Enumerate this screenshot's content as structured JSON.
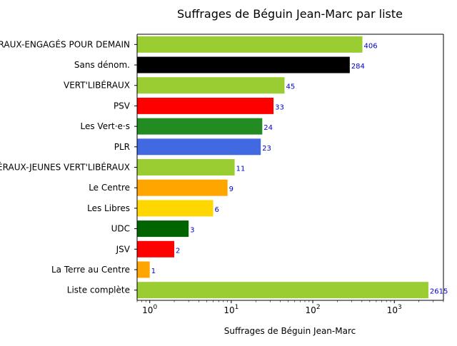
{
  "chart_data": {
    "type": "bar",
    "orientation": "horizontal",
    "title": "Suffrages de Béguin Jean-Marc par liste",
    "xlabel": "Suffrages de Béguin Jean-Marc",
    "ylabel": "",
    "xscale": "log",
    "xlim": [
      0.7,
      4000
    ],
    "x_ticks": [
      1,
      10,
      100,
      1000
    ],
    "x_tick_labels": [
      {
        "base": "10",
        "exp": "0"
      },
      {
        "base": "10",
        "exp": "1"
      },
      {
        "base": "10",
        "exp": "2"
      },
      {
        "base": "10",
        "exp": "3"
      }
    ],
    "grid": false,
    "legend": "none",
    "categories": [
      "VERT'LIBÉRAUX-ENGAGÉS POUR DEMAIN",
      "Sans dénom.",
      "VERT'LIBÉRAUX",
      "PSV",
      "Les Vert·e·s",
      "PLR",
      "VERT'LIBÉRAUX-JEUNES VERT'LIBÉRAUX",
      "Le Centre",
      "Les Libres",
      "UDC",
      "JSV",
      "La Terre au Centre",
      "Liste complète"
    ],
    "values": [
      406,
      284,
      45,
      33,
      24,
      23,
      11,
      9,
      6,
      3,
      2,
      1,
      2615
    ],
    "data_labels": [
      "406",
      "284",
      "45",
      "33",
      "24",
      "23",
      "11",
      "9",
      "6",
      "3",
      "2",
      "1",
      "2615"
    ],
    "colors": [
      "#9acd32",
      "#000000",
      "#9acd32",
      "#ff0000",
      "#228b22",
      "#4169e1",
      "#9acd32",
      "#ffa500",
      "#ffd700",
      "#006400",
      "#ff0000",
      "#ffa500",
      "#9acd32"
    ],
    "data_label_color": "#0000cc"
  }
}
